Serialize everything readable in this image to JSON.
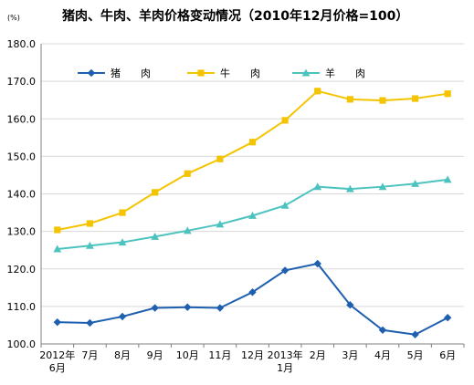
{
  "chart_data": {
    "type": "line",
    "title": "猪肉、牛肉、羊肉价格变动情况（2010年12月价格=100）",
    "unit_label": "(%)",
    "categories": [
      "2012年 6月",
      "7月",
      "8月",
      "9月",
      "10月",
      "11月",
      "12月",
      "2013年 1月",
      "2月",
      "3月",
      "4月",
      "5月",
      "6月"
    ],
    "x_tick_lines": [
      [
        "2012年",
        "6月"
      ],
      [
        "7月"
      ],
      [
        "8月"
      ],
      [
        "9月"
      ],
      [
        "10月"
      ],
      [
        "11月"
      ],
      [
        "12月"
      ],
      [
        "2013年",
        "1月"
      ],
      [
        "2月"
      ],
      [
        "3月"
      ],
      [
        "4月"
      ],
      [
        "5月"
      ],
      [
        "6月"
      ]
    ],
    "ylim": [
      100,
      180
    ],
    "yticks": [
      "100.0",
      "110.0",
      "120.0",
      "130.0",
      "140.0",
      "150.0",
      "160.0",
      "170.0",
      "180.0"
    ],
    "grid": true,
    "legend_position": "top-left, inside",
    "series": [
      {
        "name": "猪　　肉",
        "legend_label": "猪　　肉",
        "color": "#1f5fb0",
        "marker": "diamond",
        "values": [
          105.8,
          105.6,
          107.3,
          109.6,
          109.8,
          109.6,
          113.8,
          119.6,
          121.4,
          110.4,
          103.7,
          102.5,
          107.0
        ]
      },
      {
        "name": "牛　　肉",
        "legend_label": "牛　　肉",
        "color": "#f5c400",
        "marker": "square",
        "values": [
          130.4,
          132.1,
          135.0,
          140.4,
          145.4,
          149.3,
          153.8,
          159.6,
          167.4,
          165.2,
          164.9,
          165.4,
          166.7
        ]
      },
      {
        "name": "羊　　肉",
        "legend_label": "羊　　肉",
        "color": "#4dc3c0",
        "marker": "triangle",
        "values": [
          125.3,
          126.2,
          127.1,
          128.6,
          130.2,
          131.9,
          134.2,
          136.9,
          141.9,
          141.3,
          141.9,
          142.7,
          143.8
        ]
      }
    ]
  }
}
